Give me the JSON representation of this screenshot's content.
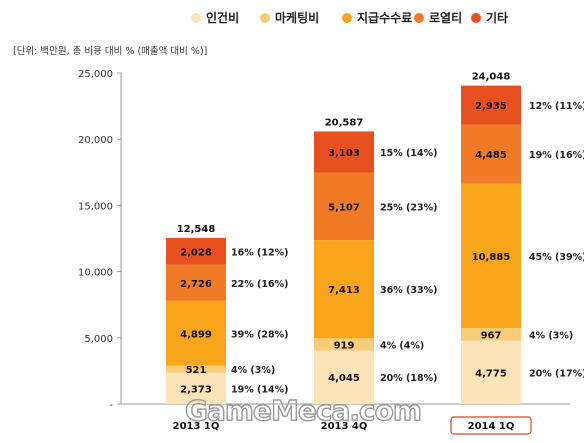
{
  "unit_note": "[단위: 백만원, 총 비용 대비 % (매출액 대비 %)]",
  "chart_data": {
    "type": "bar",
    "stacked": true,
    "categories": [
      "2013 1Q",
      "2013 4Q",
      "2014 1Q"
    ],
    "highlighted_category": "2014 1Q",
    "ylim": [
      0,
      25000
    ],
    "yticks": [
      "-",
      "5,000",
      "10,000",
      "15,000",
      "20,000",
      "25,000"
    ],
    "ytick_values": [
      0,
      5000,
      10000,
      15000,
      20000,
      25000
    ],
    "legend_position": "top-right",
    "grid": false,
    "series": [
      {
        "name": "인건비",
        "color": "#fce4b8",
        "values": [
          2373,
          4045,
          4775
        ],
        "value_labels": [
          "2,373",
          "4,045",
          "4,775"
        ],
        "pct_labels": [
          "19% (14%)",
          "20% (18%)",
          "20% (17%)"
        ]
      },
      {
        "name": "마케팅비",
        "color": "#f9cc7a",
        "values": [
          521,
          919,
          967
        ],
        "value_labels": [
          "521",
          "919",
          "967"
        ],
        "pct_labels": [
          "4% (3%)",
          "4% (4%)",
          "4% (3%)"
        ]
      },
      {
        "name": "지급수수료",
        "color": "#f8a51c",
        "values": [
          4899,
          7413,
          10885
        ],
        "value_labels": [
          "4,899",
          "7,413",
          "10,885"
        ],
        "pct_labels": [
          "39% (28%)",
          "36% (33%)",
          "45% (39%)"
        ]
      },
      {
        "name": "로열티",
        "color": "#f07a26",
        "values": [
          2726,
          5107,
          4485
        ],
        "value_labels": [
          "2,726",
          "5,107",
          "4,485"
        ],
        "pct_labels": [
          "22% (16%)",
          "25% (23%)",
          "19% (16%)"
        ]
      },
      {
        "name": "기타",
        "color": "#e9501f",
        "values": [
          2028,
          3103,
          2935
        ],
        "value_labels": [
          "2,028",
          "3,103",
          "2,935"
        ],
        "pct_labels": [
          "16% (12%)",
          "15% (14%)",
          "12% (11%)"
        ]
      }
    ],
    "totals": [
      "12,548",
      "20,587",
      "24,048"
    ]
  },
  "watermark": "GameMeca.com",
  "colors": {
    "highlight_border": "#d9442a",
    "axis": "#999999"
  }
}
